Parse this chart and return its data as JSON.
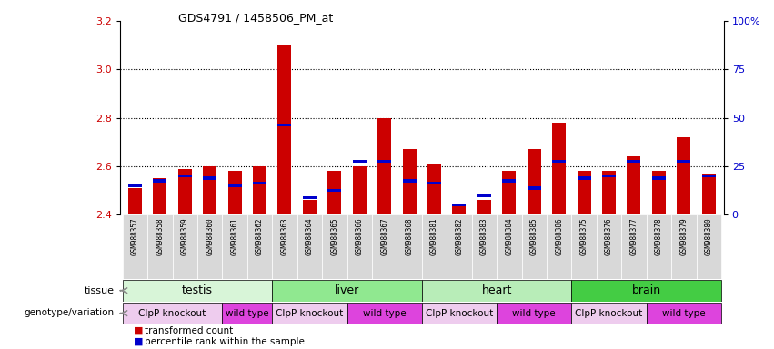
{
  "title": "GDS4791 / 1458506_PM_at",
  "samples": [
    "GSM988357",
    "GSM988358",
    "GSM988359",
    "GSM988360",
    "GSM988361",
    "GSM988362",
    "GSM988363",
    "GSM988364",
    "GSM988365",
    "GSM988366",
    "GSM988367",
    "GSM988368",
    "GSM988381",
    "GSM988382",
    "GSM988383",
    "GSM988384",
    "GSM988385",
    "GSM988386",
    "GSM988375",
    "GSM988376",
    "GSM988377",
    "GSM988378",
    "GSM988379",
    "GSM988380"
  ],
  "red_values": [
    2.51,
    2.55,
    2.59,
    2.6,
    2.58,
    2.6,
    3.1,
    2.46,
    2.58,
    2.6,
    2.8,
    2.67,
    2.61,
    2.44,
    2.46,
    2.58,
    2.67,
    2.78,
    2.58,
    2.58,
    2.64,
    2.58,
    2.72,
    2.57
  ],
  "blue_values": [
    2.52,
    2.54,
    2.56,
    2.55,
    2.52,
    2.53,
    2.77,
    2.47,
    2.5,
    2.62,
    2.62,
    2.54,
    2.53,
    2.44,
    2.48,
    2.54,
    2.51,
    2.62,
    2.55,
    2.56,
    2.62,
    2.55,
    2.62,
    2.56
  ],
  "ymin": 2.4,
  "ymax": 3.2,
  "yticks_left": [
    2.4,
    2.6,
    2.8,
    3.0,
    3.2
  ],
  "yticks_right_vals": [
    "0",
    "25",
    "50",
    "75",
    "100%"
  ],
  "yticks_right_pos": [
    2.4,
    2.6,
    2.8,
    3.0,
    3.2
  ],
  "tissues": [
    {
      "label": "testis",
      "start": 0,
      "end": 6,
      "color": "#d8f5d8"
    },
    {
      "label": "liver",
      "start": 6,
      "end": 12,
      "color": "#90e890"
    },
    {
      "label": "heart",
      "start": 12,
      "end": 18,
      "color": "#b8edb8"
    },
    {
      "label": "brain",
      "start": 18,
      "end": 24,
      "color": "#44cc44"
    }
  ],
  "genotypes": [
    {
      "label": "ClpP knockout",
      "start": 0,
      "end": 4,
      "color": "#eeccee"
    },
    {
      "label": "wild type",
      "start": 4,
      "end": 6,
      "color": "#dd44dd"
    },
    {
      "label": "ClpP knockout",
      "start": 6,
      "end": 9,
      "color": "#eeccee"
    },
    {
      "label": "wild type",
      "start": 9,
      "end": 12,
      "color": "#dd44dd"
    },
    {
      "label": "ClpP knockout",
      "start": 12,
      "end": 15,
      "color": "#eeccee"
    },
    {
      "label": "wild type",
      "start": 15,
      "end": 18,
      "color": "#dd44dd"
    },
    {
      "label": "ClpP knockout",
      "start": 18,
      "end": 21,
      "color": "#eeccee"
    },
    {
      "label": "wild type",
      "start": 21,
      "end": 24,
      "color": "#dd44dd"
    }
  ],
  "red_color": "#cc0000",
  "blue_color": "#0000cc",
  "bar_width": 0.55,
  "background_color": "#ffffff",
  "plot_bg_color": "#ffffff",
  "grid_color": "#000000",
  "dotted_lines": [
    2.6,
    2.8,
    3.0
  ],
  "xtick_bg": "#d8d8d8",
  "arrow_color": "#888888"
}
